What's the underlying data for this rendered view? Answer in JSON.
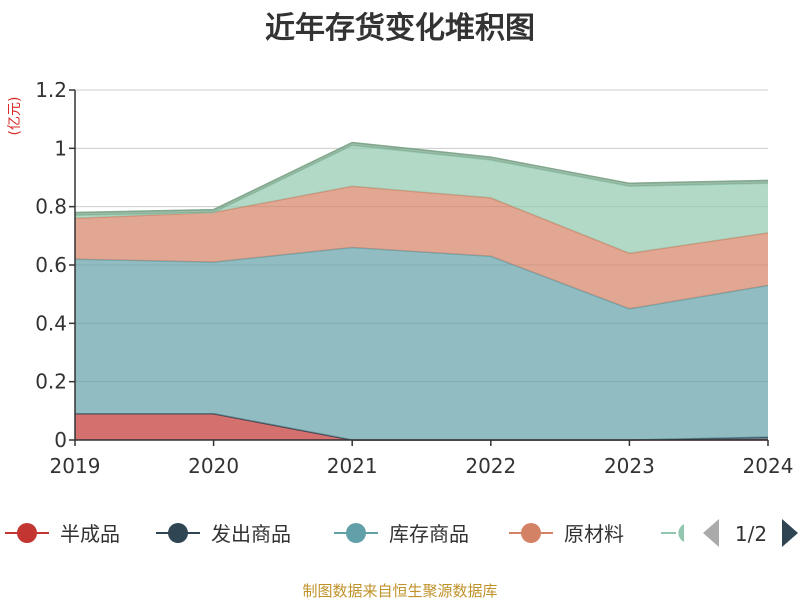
{
  "chart_data": {
    "type": "area",
    "title": "近年存货变化堆积图",
    "unit_label": "(亿元)",
    "categories": [
      "2019",
      "2020",
      "2021",
      "2022",
      "2023",
      "2024"
    ],
    "y_ticks": [
      "0",
      "0.2",
      "0.4",
      "0.6",
      "0.8",
      "1",
      "1.2"
    ],
    "ylim": [
      0,
      1.2
    ],
    "grid": true,
    "stacked": true,
    "series": [
      {
        "name": "半成品",
        "color": "#c23531",
        "values": [
          0.09,
          0.09,
          0.0,
          0.0,
          0.0,
          0.0
        ]
      },
      {
        "name": "发出商品",
        "color": "#2f4554",
        "values": [
          0.0,
          0.0,
          0.0,
          0.0,
          0.0,
          0.01
        ]
      },
      {
        "name": "库存商品",
        "color": "#61a0a8",
        "values": [
          0.53,
          0.52,
          0.66,
          0.63,
          0.45,
          0.52
        ]
      },
      {
        "name": "原材料",
        "color": "#d48265",
        "values": [
          0.14,
          0.17,
          0.21,
          0.2,
          0.19,
          0.18
        ]
      },
      {
        "name": "",
        "color": "#91c7ae",
        "values": [
          0.01,
          0.0,
          0.14,
          0.13,
          0.23,
          0.17
        ]
      },
      {
        "name": "",
        "color": "#749f83",
        "values": [
          0.01,
          0.01,
          0.01,
          0.01,
          0.01,
          0.01
        ]
      }
    ],
    "legend": {
      "position": "bottom",
      "visible_items": [
        "半成品",
        "发出商品",
        "库存商品",
        "原材料"
      ],
      "page": "1/2",
      "prev_icon": "triangle-left-icon",
      "next_icon": "triangle-right-icon"
    },
    "source_text": "制图数据来自恒生聚源数据库"
  }
}
